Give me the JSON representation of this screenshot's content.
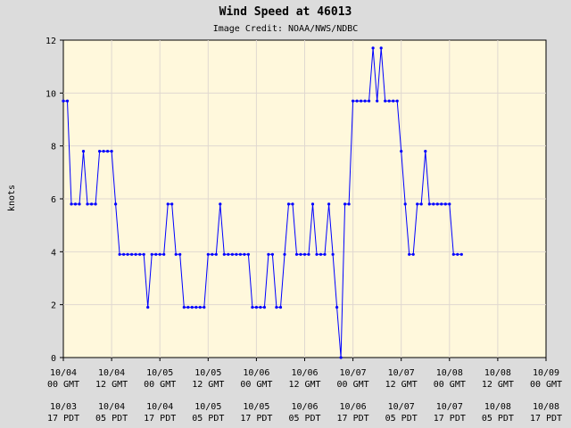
{
  "chart_data": {
    "type": "line",
    "title": "Wind Speed at 46013",
    "subtitle": "Image Credit: NOAA/NWS/NDBC",
    "ylabel": "knots",
    "xlabel": "",
    "ylim": [
      0,
      12
    ],
    "yticks": [
      "0",
      "2",
      "4",
      "6",
      "8",
      "10",
      "12"
    ],
    "grid": true,
    "colors": {
      "page": "#dcdcdc",
      "plot": "#fff8dc",
      "grid": "#e0d8d0",
      "series": "#0000ff"
    },
    "x_ticks": [
      {
        "gmt_date": "10/04",
        "gmt_time": "00 GMT",
        "pdt_date": "10/03",
        "pdt_time": "17 PDT"
      },
      {
        "gmt_date": "10/04",
        "gmt_time": "12 GMT",
        "pdt_date": "10/04",
        "pdt_time": "05 PDT"
      },
      {
        "gmt_date": "10/05",
        "gmt_time": "00 GMT",
        "pdt_date": "10/04",
        "pdt_time": "17 PDT"
      },
      {
        "gmt_date": "10/05",
        "gmt_time": "12 GMT",
        "pdt_date": "10/05",
        "pdt_time": "05 PDT"
      },
      {
        "gmt_date": "10/06",
        "gmt_time": "00 GMT",
        "pdt_date": "10/05",
        "pdt_time": "17 PDT"
      },
      {
        "gmt_date": "10/06",
        "gmt_time": "12 GMT",
        "pdt_date": "10/06",
        "pdt_time": "05 PDT"
      },
      {
        "gmt_date": "10/07",
        "gmt_time": "00 GMT",
        "pdt_date": "10/06",
        "pdt_time": "17 PDT"
      },
      {
        "gmt_date": "10/07",
        "gmt_time": "12 GMT",
        "pdt_date": "10/07",
        "pdt_time": "05 PDT"
      },
      {
        "gmt_date": "10/08",
        "gmt_time": "00 GMT",
        "pdt_date": "10/07",
        "pdt_time": "17 PDT"
      },
      {
        "gmt_date": "10/08",
        "gmt_time": "12 GMT",
        "pdt_date": "10/08",
        "pdt_time": "05 PDT"
      },
      {
        "gmt_date": "10/09",
        "gmt_time": "00 GMT",
        "pdt_date": "10/08",
        "pdt_time": "17 PDT"
      }
    ],
    "series": [
      {
        "x_hours_since_10_04_00_gmt": [
          0,
          1,
          2,
          3,
          4,
          5,
          6,
          7,
          8,
          9,
          10,
          11,
          12,
          13,
          14,
          15,
          16,
          17,
          18,
          19,
          20,
          21,
          22,
          23,
          24,
          25,
          26,
          27,
          28,
          29,
          30,
          31,
          32,
          33,
          34,
          35,
          36,
          37,
          38,
          39,
          40,
          41,
          42,
          43,
          44,
          45,
          46,
          47,
          48,
          49,
          50,
          51,
          52,
          53,
          54,
          55,
          56,
          57,
          58,
          59,
          60,
          61,
          62,
          63,
          64,
          65,
          66,
          67,
          68,
          69,
          70,
          71,
          72,
          73,
          74,
          75,
          76,
          77,
          78,
          79,
          80,
          81,
          82,
          83,
          84,
          85,
          86,
          87,
          88,
          89,
          90,
          91,
          92,
          93,
          94,
          95,
          96,
          97,
          98,
          99,
          100
        ],
        "values": [
          9.7,
          9.7,
          5.8,
          5.8,
          5.8,
          7.8,
          5.8,
          5.8,
          5.8,
          7.8,
          7.8,
          7.8,
          7.8,
          5.8,
          3.9,
          3.9,
          3.9,
          3.9,
          3.9,
          3.9,
          3.9,
          1.9,
          3.9,
          3.9,
          3.9,
          3.9,
          5.8,
          5.8,
          3.9,
          3.9,
          1.9,
          1.9,
          1.9,
          1.9,
          1.9,
          1.9,
          3.9,
          3.9,
          3.9,
          5.8,
          3.9,
          3.9,
          3.9,
          3.9,
          3.9,
          3.9,
          3.9,
          1.9,
          1.9,
          1.9,
          1.9,
          3.9,
          3.9,
          1.9,
          1.9,
          3.9,
          5.8,
          5.8,
          3.9,
          3.9,
          3.9,
          3.9,
          5.8,
          3.9,
          3.9,
          3.9,
          5.8,
          3.9,
          1.9,
          0,
          5.8,
          5.8,
          9.7,
          9.7,
          9.7,
          9.7,
          9.7,
          11.7,
          9.7,
          11.7,
          9.7,
          9.7,
          9.7,
          9.7,
          7.8,
          5.8,
          3.9,
          3.9,
          5.8,
          5.8,
          7.8,
          5.8,
          5.8,
          5.8,
          5.8,
          5.8,
          5.8,
          3.9,
          3.9,
          3.9,
          null
        ]
      }
    ]
  }
}
